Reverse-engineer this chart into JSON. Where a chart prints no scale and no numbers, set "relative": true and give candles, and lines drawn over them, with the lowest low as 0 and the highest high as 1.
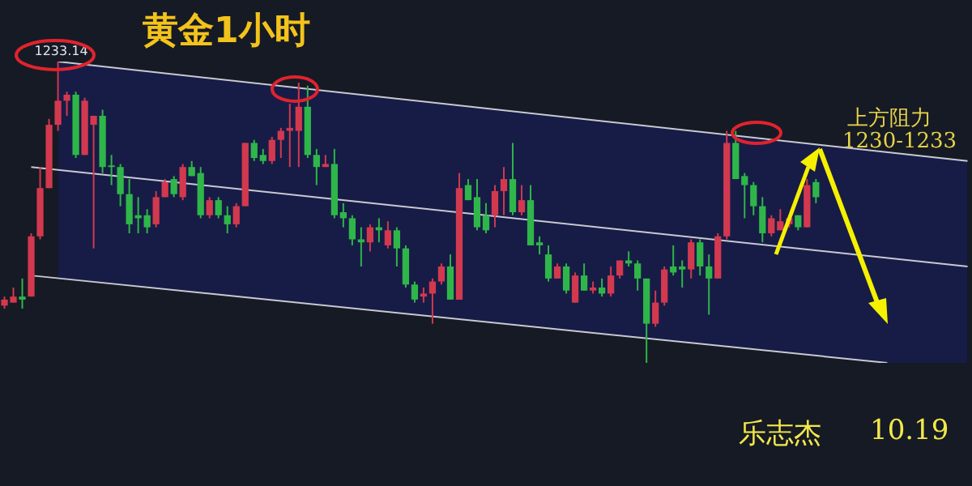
{
  "chart_data": {
    "type": "candlestick",
    "title": "黄金1小时",
    "relative": true,
    "categories": [
      null,
      null,
      null,
      null,
      null,
      null,
      null,
      null,
      null,
      null,
      null,
      null,
      null,
      null,
      null,
      null,
      null,
      null,
      null,
      null,
      null,
      null,
      null,
      null,
      null,
      null,
      null,
      null,
      null,
      null,
      null,
      null,
      null,
      null,
      null,
      null,
      null,
      null,
      null,
      null,
      null,
      null,
      null,
      null,
      null,
      null,
      null,
      null,
      null,
      null,
      null,
      null,
      null,
      null,
      null,
      null,
      null,
      null,
      null,
      null,
      null,
      null,
      null,
      null,
      null,
      null,
      null,
      null,
      null,
      null,
      null,
      null,
      null,
      null,
      null,
      null,
      null,
      null,
      null,
      null,
      null,
      null,
      null,
      null,
      null,
      null,
      null,
      null,
      null,
      null,
      null,
      null,
      null,
      null,
      null,
      null,
      null,
      null,
      null,
      null,
      null,
      null,
      null,
      null,
      null,
      null,
      null,
      null,
      null
    ],
    "ohlc": [
      [
        0.19,
        0.22,
        0.18,
        0.21
      ],
      [
        0.2,
        0.25,
        0.2,
        0.22
      ],
      [
        0.22,
        0.28,
        0.18,
        0.21
      ],
      [
        0.22,
        0.43,
        0.22,
        0.42
      ],
      [
        0.42,
        0.65,
        0.41,
        0.58
      ],
      [
        0.58,
        0.81,
        0.58,
        0.79
      ],
      [
        0.79,
        1,
        0.77,
        0.87
      ],
      [
        0.87,
        0.9,
        0.82,
        0.89
      ],
      [
        0.89,
        0.9,
        0.68,
        0.69
      ],
      [
        0.69,
        0.88,
        0.69,
        0.87
      ],
      [
        0.79,
        0.82,
        0.38,
        0.82
      ],
      [
        0.82,
        0.84,
        0.63,
        0.65
      ],
      [
        0.65,
        0.69,
        0.59,
        0.65
      ],
      [
        0.65,
        0.66,
        0.52,
        0.56
      ],
      [
        0.56,
        0.61,
        0.43,
        0.46
      ],
      [
        0.49,
        0.55,
        0.43,
        0.48
      ],
      [
        0.49,
        0.51,
        0.43,
        0.45
      ],
      [
        0.46,
        0.57,
        0.45,
        0.55
      ],
      [
        0.55,
        0.61,
        0.55,
        0.6
      ],
      [
        0.61,
        0.62,
        0.55,
        0.56
      ],
      [
        0.55,
        0.66,
        0.54,
        0.65
      ],
      [
        0.65,
        0.67,
        0.62,
        0.62
      ],
      [
        0.63,
        0.65,
        0.48,
        0.49
      ],
      [
        0.49,
        0.55,
        0.48,
        0.54
      ],
      [
        0.54,
        0.55,
        0.48,
        0.49
      ],
      [
        0.49,
        0.52,
        0.43,
        0.46
      ],
      [
        0.46,
        0.53,
        0.45,
        0.52
      ],
      [
        0.52,
        0.73,
        0.52,
        0.73
      ],
      [
        0.73,
        0.74,
        0.67,
        0.68
      ],
      [
        0.69,
        0.71,
        0.66,
        0.67
      ],
      [
        0.67,
        0.75,
        0.66,
        0.74
      ],
      [
        0.74,
        0.78,
        0.68,
        0.77
      ],
      [
        0.77,
        0.86,
        0.65,
        0.78
      ],
      [
        0.77,
        0.93,
        0.65,
        0.85
      ],
      [
        0.85,
        0.92,
        0.68,
        0.69
      ],
      [
        0.69,
        0.71,
        0.59,
        0.65
      ],
      [
        0.65,
        0.69,
        0.65,
        0.66
      ],
      [
        0.66,
        0.71,
        0.48,
        0.49
      ],
      [
        0.5,
        0.53,
        0.45,
        0.48
      ],
      [
        0.48,
        0.49,
        0.39,
        0.41
      ],
      [
        0.41,
        0.45,
        0.32,
        0.4
      ],
      [
        0.4,
        0.46,
        0.37,
        0.45
      ],
      [
        0.45,
        0.48,
        0.4,
        0.44
      ],
      [
        0.39,
        0.47,
        0.38,
        0.44
      ],
      [
        0.44,
        0.45,
        0.32,
        0.38
      ],
      [
        0.38,
        0.39,
        0.25,
        0.26
      ],
      [
        0.26,
        0.27,
        0.2,
        0.21
      ],
      [
        0.22,
        0.25,
        0.2,
        0.23
      ],
      [
        0.23,
        0.28,
        0.13,
        0.27
      ],
      [
        0.27,
        0.33,
        0.26,
        0.32
      ],
      [
        0.32,
        0.36,
        0.21,
        0.21
      ],
      [
        0.21,
        0.63,
        0.21,
        0.58
      ],
      [
        0.59,
        0.61,
        0.54,
        0.54
      ],
      [
        0.55,
        0.61,
        0.44,
        0.45
      ],
      [
        0.49,
        0.53,
        0.43,
        0.44
      ],
      [
        0.49,
        0.59,
        0.45,
        0.57
      ],
      [
        0.57,
        0.65,
        0.49,
        0.61
      ],
      [
        0.61,
        0.73,
        0.49,
        0.5
      ],
      [
        0.5,
        0.59,
        0.49,
        0.54
      ],
      [
        0.54,
        0.59,
        0.39,
        0.39
      ],
      [
        0.4,
        0.42,
        0.36,
        0.39
      ],
      [
        0.36,
        0.39,
        0.27,
        0.28
      ],
      [
        0.28,
        0.33,
        0.28,
        0.32
      ],
      [
        0.32,
        0.33,
        0.23,
        0.24
      ],
      [
        0.2,
        0.3,
        0.2,
        0.29
      ],
      [
        0.29,
        0.33,
        0.24,
        0.24
      ],
      [
        0.24,
        0.27,
        0.23,
        0.25
      ],
      [
        0.25,
        0.28,
        0.22,
        0.23
      ],
      [
        0.23,
        0.32,
        0.22,
        0.29
      ],
      [
        0.29,
        0.34,
        0.28,
        0.34
      ],
      [
        0.34,
        0.37,
        0.32,
        0.33
      ],
      [
        0.33,
        0.34,
        0.24,
        0.28
      ],
      [
        0.28,
        0.28,
        0,
        0.13
      ],
      [
        0.13,
        0.24,
        0.12,
        0.2
      ],
      [
        0.2,
        0.32,
        0.19,
        0.31
      ],
      [
        0.32,
        0.39,
        0.29,
        0.3
      ],
      [
        0.32,
        0.34,
        0.25,
        0.31
      ],
      [
        0.31,
        0.41,
        0.28,
        0.4
      ],
      [
        0.4,
        0.41,
        0.29,
        0.32
      ],
      [
        0.32,
        0.36,
        0.16,
        0.28
      ],
      [
        0.28,
        0.43,
        0.28,
        0.42
      ],
      [
        0.42,
        0.77,
        0.41,
        0.73
      ],
      [
        0.73,
        0.77,
        0.61,
        0.61
      ],
      [
        0.62,
        0.63,
        0.48,
        0.59
      ],
      [
        0.59,
        0.6,
        0.49,
        0.52
      ],
      [
        0.52,
        0.55,
        0.4,
        0.43
      ],
      [
        0.43,
        0.49,
        0.42,
        0.48
      ],
      [
        0.44,
        0.51,
        0.44,
        0.47
      ],
      [
        0.46,
        0.49,
        0.45,
        0.48
      ],
      [
        0.49,
        0.49,
        0.44,
        0.45
      ],
      [
        0.45,
        0.61,
        0.45,
        0.59
      ],
      [
        0.6,
        0.61,
        0.53,
        0.55
      ],
      null,
      null,
      null,
      null,
      null,
      null,
      null,
      null,
      null,
      null,
      null,
      null,
      null,
      null,
      null,
      null,
      null
    ],
    "colors": [
      "#d2394f",
      "#d2394f",
      "#2fb64a",
      "#d2394f",
      "#d2394f",
      "#d2394f",
      "#d2394f",
      "#d2394f",
      "#2fb64a",
      "#d2394f",
      "#d2394f",
      "#2fb64a",
      "#2fb64a",
      "#2fb64a",
      "#2fb64a",
      "#2fb64a",
      "#2fb64a",
      "#d2394f",
      "#d2394f",
      "#2fb64a",
      "#d2394f",
      "#2fb64a",
      "#2fb64a",
      "#d2394f",
      "#2fb64a",
      "#2fb64a",
      "#d2394f",
      "#d2394f",
      "#2fb64a",
      "#2fb64a",
      "#d2394f",
      "#d2394f",
      "#d2394f",
      "#d2394f",
      "#2fb64a",
      "#2fb64a",
      "#d2394f",
      "#2fb64a",
      "#2fb64a",
      "#2fb64a",
      "#2fb64a",
      "#d2394f",
      "#2fb64a",
      "#d2394f",
      "#2fb64a",
      "#2fb64a",
      "#2fb64a",
      "#d2394f",
      "#d2394f",
      "#d2394f",
      "#2fb64a",
      "#d2394f",
      "#2fb64a",
      "#2fb64a",
      "#2fb64a",
      "#d2394f",
      "#d2394f",
      "#2fb64a",
      "#d2394f",
      "#2fb64a",
      "#2fb64a",
      "#2fb64a",
      "#d2394f",
      "#2fb64a",
      "#d2394f",
      "#2fb64a",
      "#d2394f",
      "#2fb64a",
      "#d2394f",
      "#d2394f",
      "#2fb64a",
      "#2fb64a",
      "#2fb64a",
      "#d2394f",
      "#d2394f",
      "#2fb64a",
      "#2fb64a",
      "#d2394f",
      "#2fb64a",
      "#2fb64a",
      "#d2394f",
      "#d2394f",
      "#2fb64a",
      "#2fb64a",
      "#2fb64a",
      "#2fb64a",
      "#d2394f",
      "#d2394f",
      "#d2394f",
      "#2fb64a",
      "#d2394f",
      "#2fb64a",
      null,
      null,
      null,
      null,
      null,
      null,
      null,
      null,
      null,
      null,
      null,
      null,
      null,
      null,
      null,
      null,
      null
    ],
    "series": [
      {
        "type": "line",
        "color": "#c9c9d2",
        "values": [
          null,
          null,
          null,
          null,
          null,
          null,
          1,
          null,
          null,
          null,
          null,
          null,
          null,
          null,
          null,
          null,
          null,
          null,
          null,
          null,
          null,
          null,
          null,
          null,
          null,
          null,
          null,
          null,
          null,
          null,
          null,
          null,
          null,
          null,
          null,
          null,
          null,
          null,
          null,
          null,
          null,
          null,
          null,
          null,
          null,
          null,
          null,
          null,
          null,
          null,
          null,
          null,
          null,
          null,
          null,
          null,
          null,
          null,
          null,
          null,
          null,
          null,
          null,
          null,
          null,
          null,
          null,
          null,
          null,
          null,
          null,
          null,
          null,
          null,
          null,
          null,
          null,
          null,
          null,
          null,
          null,
          null,
          null,
          null,
          null,
          null,
          null,
          null,
          null,
          null,
          null,
          null,
          null,
          null,
          null,
          null,
          null,
          null,
          null,
          null,
          null,
          null,
          null,
          null,
          null,
          null,
          null,
          null,
          0.67
        ]
      },
      {
        "type": "line",
        "color": "#c9c9d2",
        "values": [
          null,
          null,
          null,
          0.65,
          null,
          null,
          null,
          null,
          null,
          null,
          null,
          null,
          null,
          null,
          null,
          null,
          null,
          null,
          null,
          null,
          null,
          null,
          null,
          null,
          null,
          null,
          null,
          null,
          null,
          null,
          null,
          null,
          null,
          null,
          null,
          null,
          null,
          null,
          null,
          null,
          null,
          null,
          null,
          null,
          null,
          null,
          null,
          null,
          null,
          null,
          null,
          null,
          null,
          null,
          null,
          null,
          null,
          null,
          null,
          null,
          null,
          null,
          null,
          null,
          null,
          null,
          null,
          null,
          null,
          null,
          null,
          null,
          null,
          null,
          null,
          null,
          null,
          null,
          null,
          null,
          null,
          null,
          null,
          null,
          null,
          null,
          null,
          null,
          null,
          null,
          null,
          null,
          null,
          null,
          null,
          null,
          null,
          null,
          null,
          null,
          null,
          null,
          null,
          null,
          null,
          null,
          null,
          null,
          0.32
        ]
      },
      {
        "type": "line",
        "color": "#c9c9d2",
        "values": [
          null,
          null,
          null,
          0.29,
          null,
          null,
          null,
          null,
          null,
          null,
          null,
          null,
          null,
          null,
          null,
          null,
          null,
          null,
          null,
          null,
          null,
          null,
          null,
          null,
          null,
          null,
          null,
          null,
          null,
          null,
          null,
          null,
          null,
          null,
          null,
          null,
          null,
          null,
          null,
          null,
          null,
          null,
          null,
          null,
          null,
          null,
          null,
          null,
          null,
          null,
          null,
          null,
          null,
          null,
          null,
          null,
          null,
          null,
          null,
          null,
          null,
          null,
          null,
          null,
          null,
          null,
          null,
          null,
          null,
          null,
          null,
          null,
          null,
          null,
          null,
          null,
          null,
          null,
          null,
          null,
          null,
          null,
          null,
          null,
          null,
          null,
          null,
          null,
          null,
          null,
          null,
          null,
          null,
          null,
          null,
          null,
          null,
          null,
          null,
          0,
          null,
          null,
          null,
          null,
          null,
          null,
          null,
          null,
          null
        ]
      }
    ],
    "annotations": [
      {
        "text": "1233.14",
        "y": 1
      },
      "上方阻力",
      "1230-1233",
      "乐志杰",
      "10.19"
    ]
  }
}
